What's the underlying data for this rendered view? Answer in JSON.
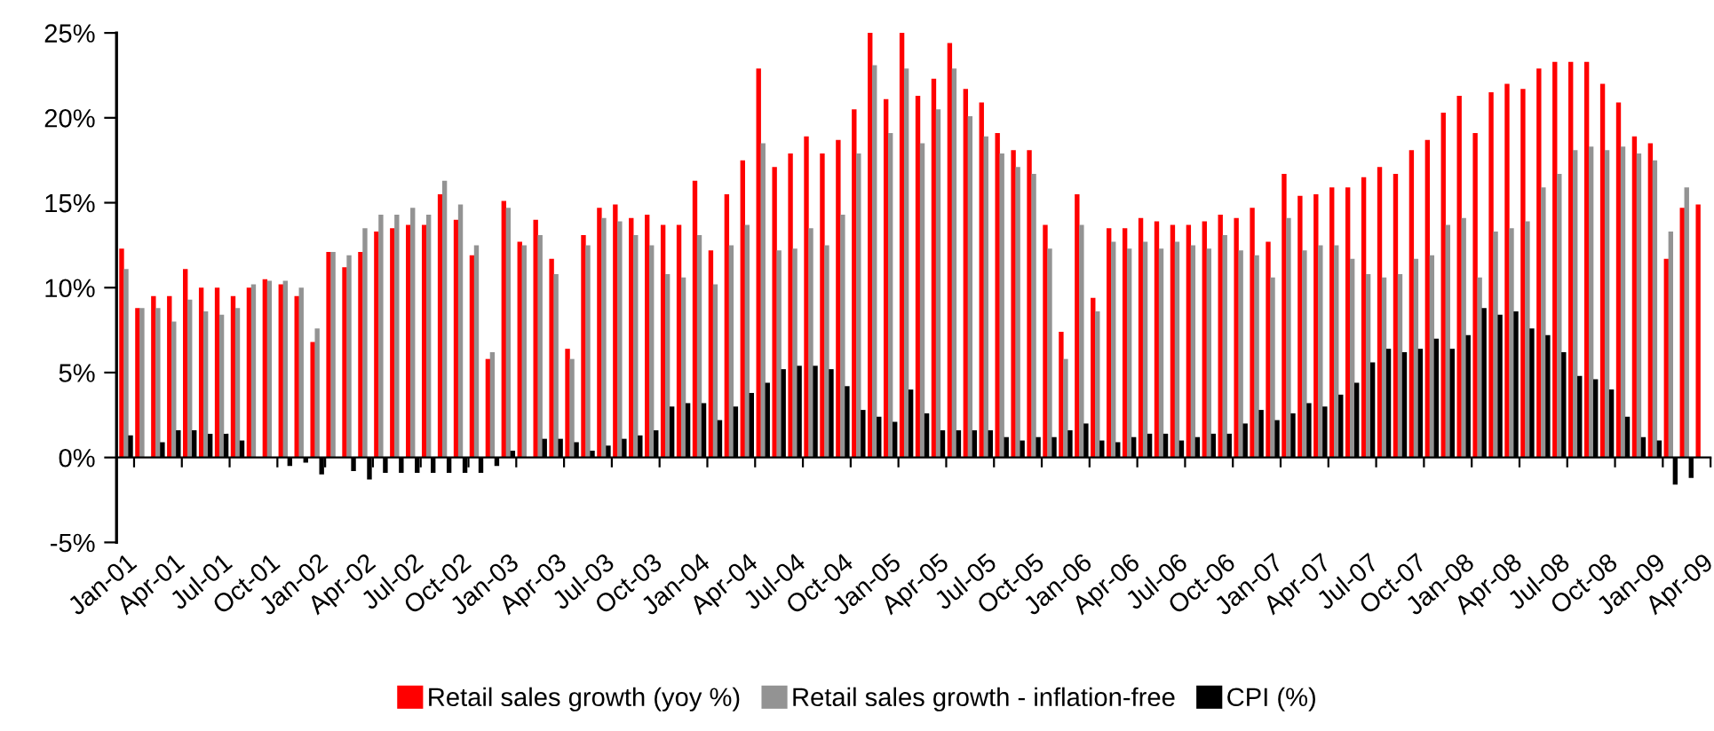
{
  "chart_data": {
    "type": "bar",
    "categories": [
      "Jan-01",
      null,
      null,
      "Apr-01",
      null,
      null,
      "Jul-01",
      null,
      null,
      "Oct-01",
      null,
      null,
      "Jan-02",
      null,
      null,
      "Apr-02",
      null,
      null,
      "Jul-02",
      null,
      null,
      "Oct-02",
      null,
      null,
      "Jan-03",
      null,
      null,
      "Apr-03",
      null,
      null,
      "Jul-03",
      null,
      null,
      "Oct-03",
      null,
      null,
      "Jan-04",
      null,
      null,
      "Apr-04",
      null,
      null,
      "Jul-04",
      null,
      null,
      "Oct-04",
      null,
      null,
      "Jan-05",
      null,
      null,
      "Apr-05",
      null,
      null,
      "Jul-05",
      null,
      null,
      "Oct-05",
      null,
      null,
      "Jan-06",
      null,
      null,
      "Apr-06",
      null,
      null,
      "Jul-06",
      null,
      null,
      "Oct-06",
      null,
      null,
      "Jan-07",
      null,
      null,
      "Apr-07",
      null,
      null,
      "Jul-07",
      null,
      null,
      "Oct-07",
      null,
      null,
      "Jan-08",
      null,
      null,
      "Apr-08",
      null,
      null,
      "Jul-08",
      null,
      null,
      "Oct-08",
      null,
      null,
      "Jan-09",
      null,
      null,
      "Apr-09"
    ],
    "series": [
      {
        "name": "Retail sales growth (yoy %)",
        "color": "#ff0000",
        "values": [
          12.3,
          8.8,
          9.5,
          9.5,
          11.1,
          10.0,
          10.0,
          9.5,
          10.0,
          10.5,
          10.2,
          9.5,
          6.8,
          12.1,
          11.2,
          12.1,
          13.3,
          13.5,
          13.7,
          13.7,
          15.5,
          14.0,
          11.9,
          5.8,
          15.1,
          12.7,
          14.0,
          11.7,
          6.4,
          13.1,
          14.7,
          14.9,
          14.1,
          14.3,
          13.7,
          13.7,
          16.3,
          12.2,
          15.5,
          17.5,
          22.9,
          17.1,
          17.9,
          18.9,
          17.9,
          18.7,
          20.5,
          25.0,
          21.1,
          25.0,
          21.3,
          22.3,
          24.4,
          21.7,
          20.9,
          19.1,
          18.1,
          18.1,
          13.7,
          7.4,
          15.5,
          9.4,
          13.5,
          13.5,
          14.1,
          13.9,
          13.7,
          13.7,
          13.9,
          14.3,
          14.1,
          14.7,
          12.7,
          16.7,
          15.4,
          15.5,
          15.9,
          15.9,
          16.5,
          17.1,
          16.7,
          18.1,
          18.7,
          20.3,
          21.3,
          19.1,
          21.5,
          22.0,
          21.7,
          22.9,
          23.3,
          23.3,
          23.3,
          22.0,
          20.9,
          18.9,
          18.5,
          11.7,
          14.7,
          14.9
        ]
      },
      {
        "name": "Retail sales growth - inflation-free",
        "color": "#939393",
        "values": [
          11.1,
          8.8,
          8.8,
          8.0,
          9.3,
          8.6,
          8.4,
          8.8,
          10.2,
          10.4,
          10.4,
          10.0,
          7.6,
          12.1,
          11.9,
          13.5,
          14.3,
          14.3,
          14.7,
          14.3,
          16.3,
          14.9,
          12.5,
          6.2,
          14.7,
          12.5,
          13.1,
          10.8,
          5.8,
          12.5,
          14.1,
          13.9,
          13.1,
          12.5,
          10.8,
          10.6,
          13.1,
          10.2,
          12.5,
          13.7,
          18.5,
          12.2,
          12.3,
          13.5,
          12.5,
          14.3,
          17.9,
          23.1,
          19.1,
          22.9,
          18.5,
          20.5,
          22.9,
          20.1,
          18.9,
          17.9,
          17.1,
          16.7,
          12.3,
          5.8,
          13.7,
          8.6,
          12.7,
          12.3,
          12.7,
          12.3,
          12.7,
          12.5,
          12.3,
          13.1,
          12.2,
          11.9,
          10.6,
          14.1,
          12.2,
          12.5,
          12.5,
          11.7,
          10.8,
          10.6,
          10.8,
          11.7,
          11.9,
          13.7,
          14.1,
          10.6,
          13.3,
          13.5,
          13.9,
          15.9,
          16.7,
          18.1,
          18.3,
          18.1,
          18.3,
          17.9,
          17.5,
          13.3,
          15.9,
          null
        ]
      },
      {
        "name": "CPI (%)",
        "color": "#000000",
        "values": [
          1.3,
          null,
          0.9,
          1.6,
          1.6,
          1.4,
          1.4,
          1.0,
          null,
          null,
          -0.5,
          -0.3,
          -1.0,
          null,
          -0.8,
          -1.3,
          -0.9,
          -0.9,
          -0.9,
          -0.9,
          -0.9,
          -0.9,
          -0.9,
          -0.5,
          0.4,
          null,
          1.1,
          1.1,
          0.9,
          0.4,
          0.7,
          1.1,
          1.3,
          1.6,
          3.0,
          3.2,
          3.2,
          2.2,
          3.0,
          3.8,
          4.4,
          5.2,
          5.4,
          5.4,
          5.2,
          4.2,
          2.8,
          2.4,
          2.1,
          4.0,
          2.6,
          1.6,
          1.6,
          1.6,
          1.6,
          1.2,
          1.0,
          1.2,
          1.2,
          1.6,
          2.0,
          1.0,
          0.9,
          1.2,
          1.4,
          1.4,
          1.0,
          1.2,
          1.4,
          1.4,
          2.0,
          2.8,
          2.2,
          2.6,
          3.2,
          3.0,
          3.7,
          4.4,
          5.6,
          6.4,
          6.2,
          6.4,
          7.0,
          6.4,
          7.2,
          8.8,
          8.4,
          8.6,
          7.6,
          7.2,
          6.2,
          4.8,
          4.6,
          4.0,
          2.4,
          1.2,
          1.0,
          -1.6,
          -1.2,
          null
        ]
      }
    ],
    "ylim": [
      -5,
      25
    ],
    "yticks": [
      {
        "value": -5,
        "label": "-5%"
      },
      {
        "value": 0,
        "label": "0%"
      },
      {
        "value": 5,
        "label": "5%"
      },
      {
        "value": 10,
        "label": "10%"
      },
      {
        "value": 15,
        "label": "15%"
      },
      {
        "value": 20,
        "label": "20%"
      },
      {
        "value": 25,
        "label": "25%"
      }
    ],
    "legend": "bottom"
  }
}
